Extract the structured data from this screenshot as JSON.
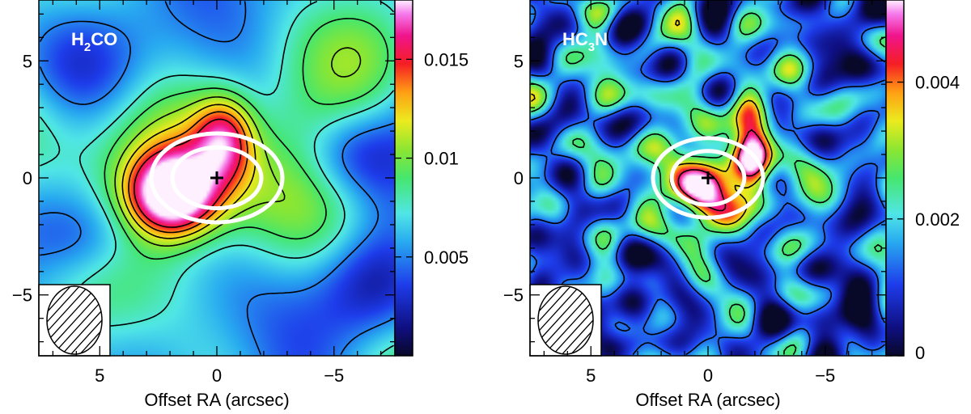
{
  "chart_data": [
    {
      "type": "heatmap",
      "title": "H2CO",
      "title_parts": {
        "pre": "H",
        "sub": "2",
        "post": "CO"
      },
      "xlabel": "Offset RA (arcsec)",
      "ylabel": "",
      "xlim": [
        7.6,
        -7.6
      ],
      "ylim": [
        -7.6,
        7.6
      ],
      "x_ticks": [
        5,
        0,
        -5
      ],
      "x_tick_labels": [
        "5",
        "0",
        "−5"
      ],
      "y_ticks": [
        5,
        0,
        -5
      ],
      "y_tick_labels": [
        "5",
        "0",
        "−5"
      ],
      "colorbar": {
        "range": [
          0,
          0.018
        ],
        "ticks": [
          0.015,
          0.01,
          0.005
        ],
        "tick_labels": [
          "0.015",
          "0.01",
          "0.005"
        ]
      },
      "peaks": [
        {
          "x": 1.9,
          "y": -0.7,
          "amp": 0.012,
          "sx": 1.3,
          "sy": 1.2
        },
        {
          "x": -0.3,
          "y": 1.7,
          "amp": 0.007,
          "sx": 0.9,
          "sy": 1.3
        },
        {
          "x": 0.2,
          "y": 0.2,
          "amp": 0.007,
          "sx": 2.6,
          "sy": 2.5
        },
        {
          "x": -5.8,
          "y": 1.0,
          "amp": -0.0035,
          "sx": 1.5,
          "sy": 1.3
        },
        {
          "x": 5.5,
          "y": -2.5,
          "amp": -0.0025,
          "sx": 1.6,
          "sy": 1.3
        },
        {
          "x": -6.5,
          "y": -4.5,
          "amp": -0.0025,
          "sx": 1.5,
          "sy": 1.4
        },
        {
          "x": 6.0,
          "y": 4.5,
          "amp": -0.0015,
          "sx": 2.0,
          "sy": 1.5
        }
      ],
      "background": 0.0062,
      "contour_levels": [
        0.005,
        0.0075,
        0.009,
        0.0105,
        0.012,
        0.0135,
        0.015
      ],
      "ellipses": [
        {
          "cx": 0,
          "cy": 0,
          "rx": 1.9,
          "ry": 1.3
        },
        {
          "cx": 0,
          "cy": 0,
          "rx": 2.8,
          "ry": 1.9
        }
      ],
      "cross": {
        "x": 0,
        "y": 0
      },
      "beam": {
        "cx": 5.8,
        "cy": -5.6,
        "rx": 1.4,
        "ry": 2.05
      }
    },
    {
      "type": "heatmap",
      "title": "HC3N",
      "title_parts": {
        "pre": "HC",
        "sub": "3",
        "post": "N"
      },
      "xlabel": "Offset RA (arcsec)",
      "ylabel": "",
      "xlim": [
        7.6,
        -7.6
      ],
      "ylim": [
        -7.6,
        7.6
      ],
      "x_ticks": [
        5,
        0,
        -5
      ],
      "x_tick_labels": [
        "5",
        "0",
        "−5"
      ],
      "y_ticks": [
        5,
        0,
        -5
      ],
      "y_tick_labels": [
        "5",
        "0",
        "−5"
      ],
      "colorbar": {
        "range": [
          0,
          0.0052
        ],
        "ticks": [
          0.004,
          0.002,
          0
        ],
        "tick_labels": [
          "0.004",
          "0.002",
          "0"
        ]
      },
      "peaks": [
        {
          "x": 0.6,
          "y": -0.8,
          "amp": 0.0028,
          "sx": 0.9,
          "sy": 0.7
        },
        {
          "x": -1.9,
          "y": 1.1,
          "amp": 0.0028,
          "sx": 0.55,
          "sy": 1.1
        },
        {
          "x": -0.4,
          "y": 0.3,
          "amp": 0.0018,
          "sx": 2.2,
          "sy": 1.8
        },
        {
          "x": 4.5,
          "y": 4.3,
          "amp": 0.0008,
          "sx": 0.8,
          "sy": 1.0
        },
        {
          "x": -3.0,
          "y": 5.2,
          "amp": 0.0006,
          "sx": 2.0,
          "sy": 1.2
        },
        {
          "x": -6.0,
          "y": 6.0,
          "amp": -0.0009,
          "sx": 1.5,
          "sy": 1.5
        },
        {
          "x": -5.3,
          "y": -5.5,
          "amp": -0.0008,
          "sx": 1.6,
          "sy": 1.3
        },
        {
          "x": 3.5,
          "y": -5.0,
          "amp": -0.0006,
          "sx": 1.5,
          "sy": 1.2
        }
      ],
      "background": 0.00135,
      "noise": 0.00045,
      "contour_levels": [
        0.0013,
        0.0025,
        0.0035,
        0.0045
      ],
      "ellipses": [
        {
          "cx": 0,
          "cy": 0,
          "rx": 1.55,
          "ry": 1.15
        },
        {
          "cx": 0,
          "cy": 0,
          "rx": 2.35,
          "ry": 1.7
        }
      ],
      "cross": {
        "x": 0,
        "y": 0
      },
      "beam": {
        "cx": 5.8,
        "cy": -5.6,
        "rx": 1.4,
        "ry": 2.05
      }
    }
  ]
}
